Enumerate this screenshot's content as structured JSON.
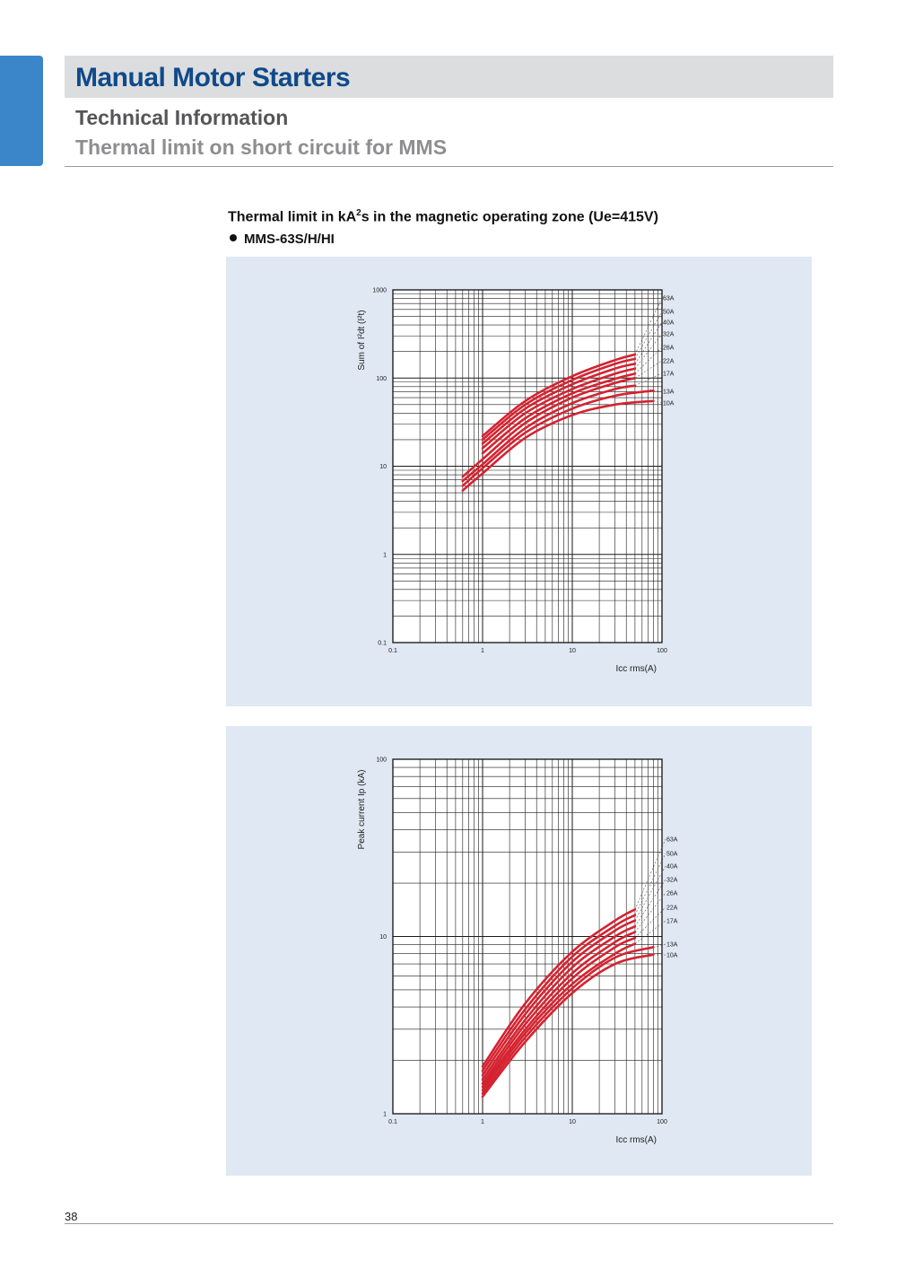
{
  "header": {
    "title": "Manual Motor Starters",
    "section": "Technical Information",
    "subtitle": "Thermal limit on short circuit for MMS"
  },
  "chart_heading": {
    "prefix": "Thermal limit in kA",
    "sup": "2",
    "suffix": "s in the magnetic operating zone (Ue=415V)"
  },
  "model": "MMS-63S/H/HI",
  "page_number": "38",
  "colors": {
    "curve": "#d42330",
    "panel_bg": "#dfe8f3",
    "accent": "#3b86c9",
    "title": "#0f4a8a"
  },
  "chart_data": [
    {
      "type": "line",
      "x_scale": "log",
      "y_scale": "log",
      "xlabel": "Icc rms(A)",
      "ylabel": "Sum of I²dt (I²t)",
      "xlim": [
        0.1,
        100
      ],
      "ylim": [
        0.1,
        1000
      ],
      "x_ticks": [
        "0.1",
        "1",
        "10",
        "100"
      ],
      "y_ticks": [
        "0.1",
        "1",
        "10",
        "100",
        "1000"
      ],
      "grid": true,
      "legend_labels": [
        "63A",
        "50A",
        "40A",
        "32A",
        "26A",
        "22A",
        "17A",
        "13A",
        "10A"
      ],
      "series": [
        {
          "name": "63A",
          "x": [
            1,
            3,
            10,
            30,
            50
          ],
          "y": [
            22,
            55,
            105,
            160,
            185
          ]
        },
        {
          "name": "50A",
          "x": [
            1,
            3,
            10,
            30,
            50
          ],
          "y": [
            20,
            50,
            95,
            145,
            165
          ]
        },
        {
          "name": "40A",
          "x": [
            1,
            3,
            10,
            30,
            50
          ],
          "y": [
            18,
            45,
            85,
            128,
            145
          ]
        },
        {
          "name": "32A",
          "x": [
            1,
            3,
            10,
            30,
            50
          ],
          "y": [
            16,
            40,
            75,
            112,
            128
          ]
        },
        {
          "name": "26A",
          "x": [
            1,
            3,
            10,
            30,
            50
          ],
          "y": [
            14,
            35,
            67,
            98,
            112
          ]
        },
        {
          "name": "22A",
          "x": [
            0.6,
            1,
            3,
            10,
            30,
            50
          ],
          "y": [
            7.6,
            12,
            31,
            60,
            88,
            100
          ]
        },
        {
          "name": "17A",
          "x": [
            0.6,
            1,
            3,
            10,
            30,
            50
          ],
          "y": [
            6.8,
            10.5,
            27,
            52,
            75,
            82
          ]
        },
        {
          "name": "13A",
          "x": [
            0.6,
            1,
            3,
            10,
            30,
            80
          ],
          "y": [
            6,
            9.5,
            24,
            45,
            63,
            72
          ]
        },
        {
          "name": "10A",
          "x": [
            0.6,
            1,
            3,
            10,
            30,
            80
          ],
          "y": [
            5.3,
            8.3,
            21,
            38,
            50,
            55
          ]
        }
      ]
    },
    {
      "type": "line",
      "x_scale": "log",
      "y_scale": "log",
      "xlabel": "Icc rms(A)",
      "ylabel": "Peak current Ip (kA)",
      "xlim": [
        0.1,
        100
      ],
      "ylim": [
        1,
        100
      ],
      "x_ticks": [
        "0.1",
        "1",
        "10",
        "100"
      ],
      "y_ticks": [
        "1",
        "10",
        "100"
      ],
      "grid": true,
      "legend_labels": [
        "63A",
        "50A",
        "40A",
        "32A",
        "26A",
        "22A",
        "17A",
        "13A",
        "10A"
      ],
      "series": [
        {
          "name": "63A",
          "x": [
            1,
            3,
            10,
            30,
            50
          ],
          "y": [
            1.85,
            4.2,
            8.2,
            12.3,
            14.2
          ]
        },
        {
          "name": "50A",
          "x": [
            1,
            3,
            10,
            30,
            50
          ],
          "y": [
            1.75,
            3.9,
            7.7,
            11.5,
            13.2
          ]
        },
        {
          "name": "40A",
          "x": [
            1,
            3,
            10,
            30,
            50
          ],
          "y": [
            1.65,
            3.65,
            7.2,
            10.8,
            12.3
          ]
        },
        {
          "name": "32A",
          "x": [
            1,
            3,
            10,
            30,
            50
          ],
          "y": [
            1.56,
            3.4,
            6.7,
            10,
            11.4
          ]
        },
        {
          "name": "26A",
          "x": [
            1,
            3,
            10,
            30,
            50
          ],
          "y": [
            1.48,
            3.2,
            6.2,
            9.3,
            10.6
          ]
        },
        {
          "name": "22A",
          "x": [
            1,
            3,
            10,
            30,
            50
          ],
          "y": [
            1.42,
            3,
            5.8,
            8.7,
            9.8
          ]
        },
        {
          "name": "17A",
          "x": [
            1,
            3,
            10,
            30,
            50
          ],
          "y": [
            1.36,
            2.85,
            5.4,
            8,
            9.1
          ]
        },
        {
          "name": "13A",
          "x": [
            1,
            3,
            10,
            30,
            80
          ],
          "y": [
            1.3,
            2.7,
            5.1,
            7.6,
            8.7
          ]
        },
        {
          "name": "10A",
          "x": [
            1,
            3,
            10,
            30,
            80
          ],
          "y": [
            1.25,
            2.55,
            4.8,
            7,
            7.9
          ]
        }
      ]
    }
  ]
}
